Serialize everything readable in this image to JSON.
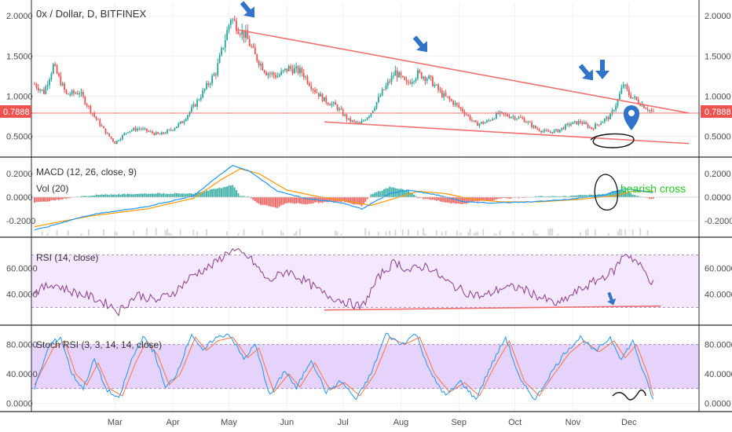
{
  "header": {
    "title": "0x / Dollar, D, BITFINEX"
  },
  "colors": {
    "up": "#26a69a",
    "down": "#ef5350",
    "trend": "#f07070",
    "macd": "#2196f3",
    "signal": "#ff9800",
    "rsi": "#8e3b8e",
    "stoch_k": "#2196f3",
    "stoch_d": "#ff7043",
    "band_fill": "#ede0fb",
    "annotation_blue": "#3173c8",
    "annotation_green": "#22cc22"
  },
  "price_tag": {
    "value": "0.7888"
  },
  "annotations": {
    "bearish_cross": "bearish cross",
    "icons": [
      "down-arrow-icon",
      "down-arrow-icon",
      "down-arrow-icon",
      "down-arrow-icon",
      "location-pin-icon"
    ]
  },
  "x_axis": {
    "labels": [
      "Mar",
      "Apr",
      "May",
      "Jun",
      "Jul",
      "Aug",
      "Sep",
      "Oct",
      "Nov",
      "Dec"
    ]
  },
  "chart_data": [
    {
      "type": "candlestick",
      "title": "0x / Dollar, D, BITFINEX",
      "ylim": [
        0.3,
        2.1
      ],
      "yticks": [
        "0.5000",
        "1.0000",
        "1.5000",
        "2.0000"
      ],
      "ytick_values": [
        0.5,
        1.0,
        1.5,
        2.0
      ],
      "keypoints": [
        {
          "d": 0,
          "p": 1.15
        },
        {
          "d": 5,
          "p": 1.05
        },
        {
          "d": 10,
          "p": 1.38
        },
        {
          "d": 17,
          "p": 1.02
        },
        {
          "d": 24,
          "p": 1.05
        },
        {
          "d": 32,
          "p": 0.75
        },
        {
          "d": 38,
          "p": 0.55
        },
        {
          "d": 43,
          "p": 0.42
        },
        {
          "d": 50,
          "p": 0.57
        },
        {
          "d": 56,
          "p": 0.6
        },
        {
          "d": 62,
          "p": 0.55
        },
        {
          "d": 67,
          "p": 0.52
        },
        {
          "d": 73,
          "p": 0.58
        },
        {
          "d": 79,
          "p": 0.68
        },
        {
          "d": 86,
          "p": 0.9
        },
        {
          "d": 92,
          "p": 1.12
        },
        {
          "d": 97,
          "p": 1.3
        },
        {
          "d": 102,
          "p": 1.72
        },
        {
          "d": 105,
          "p": 1.98
        },
        {
          "d": 109,
          "p": 1.85
        },
        {
          "d": 113,
          "p": 1.75
        },
        {
          "d": 118,
          "p": 1.5
        },
        {
          "d": 124,
          "p": 1.3
        },
        {
          "d": 130,
          "p": 1.25
        },
        {
          "d": 136,
          "p": 1.35
        },
        {
          "d": 143,
          "p": 1.3
        },
        {
          "d": 149,
          "p": 1.1
        },
        {
          "d": 155,
          "p": 0.95
        },
        {
          "d": 161,
          "p": 0.88
        },
        {
          "d": 168,
          "p": 0.7
        },
        {
          "d": 174,
          "p": 0.65
        },
        {
          "d": 180,
          "p": 0.8
        },
        {
          "d": 186,
          "p": 1.05
        },
        {
          "d": 193,
          "p": 1.3
        },
        {
          "d": 199,
          "p": 1.15
        },
        {
          "d": 205,
          "p": 1.28
        },
        {
          "d": 211,
          "p": 1.22
        },
        {
          "d": 218,
          "p": 1.02
        },
        {
          "d": 224,
          "p": 0.92
        },
        {
          "d": 230,
          "p": 0.8
        },
        {
          "d": 236,
          "p": 0.65
        },
        {
          "d": 242,
          "p": 0.68
        },
        {
          "d": 248,
          "p": 0.78
        },
        {
          "d": 255,
          "p": 0.75
        },
        {
          "d": 261,
          "p": 0.72
        },
        {
          "d": 268,
          "p": 0.6
        },
        {
          "d": 274,
          "p": 0.55
        },
        {
          "d": 280,
          "p": 0.57
        },
        {
          "d": 286,
          "p": 0.65
        },
        {
          "d": 292,
          "p": 0.68
        },
        {
          "d": 298,
          "p": 0.6
        },
        {
          "d": 303,
          "p": 0.68
        },
        {
          "d": 308,
          "p": 0.75
        },
        {
          "d": 312,
          "p": 0.95
        },
        {
          "d": 315,
          "p": 1.15
        },
        {
          "d": 318,
          "p": 1.02
        },
        {
          "d": 322,
          "p": 0.95
        },
        {
          "d": 326,
          "p": 0.88
        },
        {
          "d": 331,
          "p": 0.79
        }
      ],
      "trendlines": [
        {
          "from": {
            "d": 108,
            "p": 1.83
          },
          "to": {
            "d": 350,
            "p": 0.79
          }
        },
        {
          "from": {
            "d": 155,
            "p": 0.68
          },
          "to": {
            "d": 350,
            "p": 0.41
          }
        },
        {
          "from": {
            "d": 0,
            "p": 0.7888
          },
          "to": {
            "d": 365,
            "p": 0.7888
          }
        }
      ]
    },
    {
      "type": "line",
      "title": "MACD (12, 26, close, 9)",
      "subtitle": "Vol (20)",
      "ylim": [
        -0.3,
        0.3
      ],
      "yticks": [
        "-0.2000",
        "0.0000",
        "0.2000"
      ],
      "ytick_values": [
        -0.2,
        0.0,
        0.2
      ],
      "series": [
        {
          "name": "MACD",
          "keypoints": [
            {
              "d": 0,
              "v": -0.28
            },
            {
              "d": 30,
              "v": -0.15
            },
            {
              "d": 60,
              "v": -0.08
            },
            {
              "d": 85,
              "v": 0.01
            },
            {
              "d": 100,
              "v": 0.2
            },
            {
              "d": 106,
              "v": 0.27
            },
            {
              "d": 115,
              "v": 0.22
            },
            {
              "d": 130,
              "v": 0.05
            },
            {
              "d": 145,
              "v": -0.01
            },
            {
              "d": 165,
              "v": -0.05
            },
            {
              "d": 175,
              "v": -0.1
            },
            {
              "d": 190,
              "v": 0.03
            },
            {
              "d": 200,
              "v": 0.06
            },
            {
              "d": 215,
              "v": 0.02
            },
            {
              "d": 230,
              "v": -0.04
            },
            {
              "d": 245,
              "v": -0.05
            },
            {
              "d": 265,
              "v": -0.04
            },
            {
              "d": 285,
              "v": -0.02
            },
            {
              "d": 305,
              "v": 0.02
            },
            {
              "d": 316,
              "v": 0.07
            },
            {
              "d": 322,
              "v": 0.06
            },
            {
              "d": 331,
              "v": 0.04
            }
          ]
        },
        {
          "name": "Signal",
          "keypoints": [
            {
              "d": 0,
              "v": -0.25
            },
            {
              "d": 30,
              "v": -0.16
            },
            {
              "d": 60,
              "v": -0.1
            },
            {
              "d": 85,
              "v": -0.01
            },
            {
              "d": 100,
              "v": 0.15
            },
            {
              "d": 110,
              "v": 0.24
            },
            {
              "d": 120,
              "v": 0.2
            },
            {
              "d": 135,
              "v": 0.06
            },
            {
              "d": 150,
              "v": 0.01
            },
            {
              "d": 170,
              "v": -0.04
            },
            {
              "d": 180,
              "v": -0.07
            },
            {
              "d": 195,
              "v": 0.0
            },
            {
              "d": 205,
              "v": 0.05
            },
            {
              "d": 220,
              "v": 0.03
            },
            {
              "d": 235,
              "v": -0.02
            },
            {
              "d": 250,
              "v": -0.04
            },
            {
              "d": 270,
              "v": -0.04
            },
            {
              "d": 290,
              "v": -0.02
            },
            {
              "d": 310,
              "v": 0.01
            },
            {
              "d": 320,
              "v": 0.05
            },
            {
              "d": 331,
              "v": 0.05
            }
          ]
        }
      ]
    },
    {
      "type": "line",
      "title": "RSI (14, close)",
      "ylim": [
        20,
        80
      ],
      "yticks": [
        "40.0000",
        "60.0000"
      ],
      "ytick_values": [
        40,
        60
      ],
      "band": [
        30,
        70
      ],
      "series": [
        {
          "name": "RSI",
          "keypoints": [
            {
              "d": 0,
              "v": 42
            },
            {
              "d": 10,
              "v": 48
            },
            {
              "d": 20,
              "v": 42
            },
            {
              "d": 30,
              "v": 38
            },
            {
              "d": 40,
              "v": 32
            },
            {
              "d": 45,
              "v": 27
            },
            {
              "d": 55,
              "v": 40
            },
            {
              "d": 65,
              "v": 35
            },
            {
              "d": 75,
              "v": 42
            },
            {
              "d": 85,
              "v": 55
            },
            {
              "d": 95,
              "v": 62
            },
            {
              "d": 105,
              "v": 74
            },
            {
              "d": 115,
              "v": 68
            },
            {
              "d": 125,
              "v": 50
            },
            {
              "d": 135,
              "v": 58
            },
            {
              "d": 145,
              "v": 50
            },
            {
              "d": 155,
              "v": 40
            },
            {
              "d": 165,
              "v": 35
            },
            {
              "d": 175,
              "v": 30
            },
            {
              "d": 185,
              "v": 55
            },
            {
              "d": 193,
              "v": 65
            },
            {
              "d": 200,
              "v": 58
            },
            {
              "d": 210,
              "v": 62
            },
            {
              "d": 220,
              "v": 50
            },
            {
              "d": 230,
              "v": 42
            },
            {
              "d": 240,
              "v": 38
            },
            {
              "d": 250,
              "v": 45
            },
            {
              "d": 260,
              "v": 45
            },
            {
              "d": 270,
              "v": 38
            },
            {
              "d": 280,
              "v": 32
            },
            {
              "d": 290,
              "v": 42
            },
            {
              "d": 300,
              "v": 50
            },
            {
              "d": 310,
              "v": 58
            },
            {
              "d": 316,
              "v": 72
            },
            {
              "d": 322,
              "v": 65
            },
            {
              "d": 326,
              "v": 58
            },
            {
              "d": 331,
              "v": 48
            }
          ]
        }
      ],
      "trendlines": [
        {
          "from": {
            "d": 155,
            "v": 28
          },
          "to": {
            "d": 335,
            "v": 31
          }
        }
      ]
    },
    {
      "type": "line",
      "title": "Stoch RSI (3, 3, 14, 14, close)",
      "ylim": [
        -5,
        100
      ],
      "yticks": [
        "0.0000",
        "40.0000",
        "80.0000"
      ],
      "ytick_values": [
        0,
        40,
        80
      ],
      "band": [
        20,
        80
      ],
      "series": [
        {
          "name": "K",
          "keypoints": [
            {
              "d": 0,
              "v": 20
            },
            {
              "d": 8,
              "v": 80
            },
            {
              "d": 14,
              "v": 90
            },
            {
              "d": 20,
              "v": 40
            },
            {
              "d": 26,
              "v": 20
            },
            {
              "d": 32,
              "v": 60
            },
            {
              "d": 38,
              "v": 20
            },
            {
              "d": 45,
              "v": 5
            },
            {
              "d": 52,
              "v": 60
            },
            {
              "d": 58,
              "v": 90
            },
            {
              "d": 64,
              "v": 70
            },
            {
              "d": 70,
              "v": 20
            },
            {
              "d": 76,
              "v": 40
            },
            {
              "d": 84,
              "v": 95
            },
            {
              "d": 90,
              "v": 70
            },
            {
              "d": 96,
              "v": 88
            },
            {
              "d": 104,
              "v": 95
            },
            {
              "d": 112,
              "v": 60
            },
            {
              "d": 118,
              "v": 80
            },
            {
              "d": 126,
              "v": 10
            },
            {
              "d": 134,
              "v": 45
            },
            {
              "d": 140,
              "v": 20
            },
            {
              "d": 148,
              "v": 60
            },
            {
              "d": 156,
              "v": 15
            },
            {
              "d": 164,
              "v": 30
            },
            {
              "d": 172,
              "v": 5
            },
            {
              "d": 180,
              "v": 40
            },
            {
              "d": 188,
              "v": 95
            },
            {
              "d": 196,
              "v": 80
            },
            {
              "d": 204,
              "v": 95
            },
            {
              "d": 212,
              "v": 40
            },
            {
              "d": 220,
              "v": 10
            },
            {
              "d": 228,
              "v": 30
            },
            {
              "d": 236,
              "v": 5
            },
            {
              "d": 244,
              "v": 50
            },
            {
              "d": 252,
              "v": 90
            },
            {
              "d": 260,
              "v": 30
            },
            {
              "d": 268,
              "v": 5
            },
            {
              "d": 276,
              "v": 40
            },
            {
              "d": 284,
              "v": 70
            },
            {
              "d": 292,
              "v": 90
            },
            {
              "d": 300,
              "v": 70
            },
            {
              "d": 308,
              "v": 90
            },
            {
              "d": 314,
              "v": 60
            },
            {
              "d": 320,
              "v": 85
            },
            {
              "d": 326,
              "v": 40
            },
            {
              "d": 331,
              "v": 5
            }
          ]
        },
        {
          "name": "D",
          "keypoints": [
            {
              "d": 0,
              "v": 25
            },
            {
              "d": 10,
              "v": 75
            },
            {
              "d": 16,
              "v": 85
            },
            {
              "d": 22,
              "v": 40
            },
            {
              "d": 28,
              "v": 25
            },
            {
              "d": 34,
              "v": 55
            },
            {
              "d": 40,
              "v": 20
            },
            {
              "d": 47,
              "v": 10
            },
            {
              "d": 54,
              "v": 55
            },
            {
              "d": 60,
              "v": 85
            },
            {
              "d": 66,
              "v": 65
            },
            {
              "d": 72,
              "v": 25
            },
            {
              "d": 78,
              "v": 40
            },
            {
              "d": 86,
              "v": 90
            },
            {
              "d": 92,
              "v": 72
            },
            {
              "d": 98,
              "v": 85
            },
            {
              "d": 106,
              "v": 90
            },
            {
              "d": 114,
              "v": 62
            },
            {
              "d": 120,
              "v": 75
            },
            {
              "d": 128,
              "v": 15
            },
            {
              "d": 136,
              "v": 40
            },
            {
              "d": 142,
              "v": 22
            },
            {
              "d": 150,
              "v": 55
            },
            {
              "d": 158,
              "v": 18
            },
            {
              "d": 166,
              "v": 28
            },
            {
              "d": 174,
              "v": 10
            },
            {
              "d": 182,
              "v": 40
            },
            {
              "d": 190,
              "v": 90
            },
            {
              "d": 198,
              "v": 80
            },
            {
              "d": 206,
              "v": 90
            },
            {
              "d": 214,
              "v": 40
            },
            {
              "d": 222,
              "v": 15
            },
            {
              "d": 230,
              "v": 28
            },
            {
              "d": 238,
              "v": 10
            },
            {
              "d": 246,
              "v": 50
            },
            {
              "d": 254,
              "v": 85
            },
            {
              "d": 262,
              "v": 30
            },
            {
              "d": 270,
              "v": 10
            },
            {
              "d": 278,
              "v": 40
            },
            {
              "d": 286,
              "v": 68
            },
            {
              "d": 294,
              "v": 85
            },
            {
              "d": 302,
              "v": 70
            },
            {
              "d": 310,
              "v": 85
            },
            {
              "d": 316,
              "v": 62
            },
            {
              "d": 322,
              "v": 80
            },
            {
              "d": 328,
              "v": 40
            },
            {
              "d": 331,
              "v": 10
            }
          ]
        }
      ]
    }
  ]
}
